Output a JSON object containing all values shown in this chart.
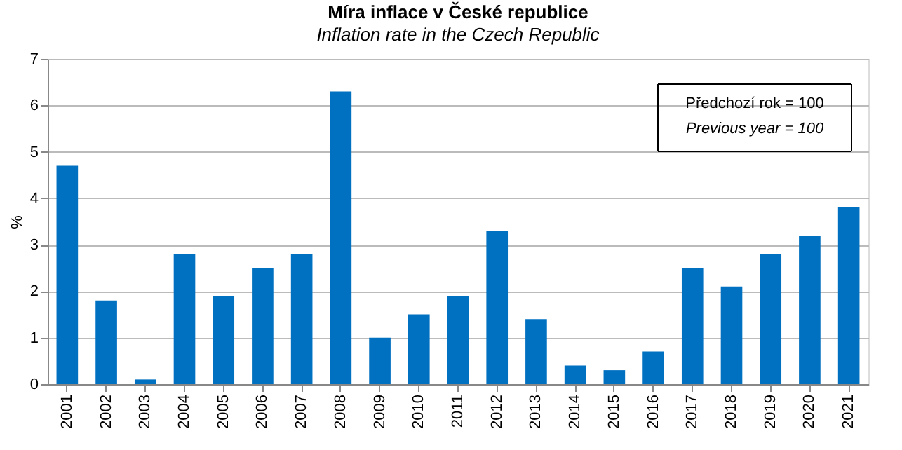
{
  "chart_data": {
    "type": "bar",
    "title": "Míra inflace v České republice",
    "subtitle": "Inflation rate in the Czech Republic",
    "ylabel": "%",
    "categories": [
      "2001",
      "2002",
      "2003",
      "2004",
      "2005",
      "2006",
      "2007",
      "2008",
      "2009",
      "2010",
      "2011",
      "2012",
      "2013",
      "2014",
      "2015",
      "2016",
      "2017",
      "2018",
      "2019",
      "2020",
      "2021"
    ],
    "values": [
      4.7,
      1.8,
      0.1,
      2.8,
      1.9,
      2.5,
      2.8,
      6.3,
      1.0,
      1.5,
      1.9,
      3.3,
      1.4,
      0.4,
      0.3,
      0.7,
      2.5,
      2.1,
      2.8,
      3.2,
      3.8
    ],
    "color": "#0070c0",
    "ylim": [
      0,
      7
    ],
    "yticks": [
      0,
      1,
      2,
      3,
      4,
      5,
      6,
      7
    ],
    "grid": "y",
    "annotations": [
      "Předchozí rok = 100",
      "Previous year = 100"
    ]
  }
}
